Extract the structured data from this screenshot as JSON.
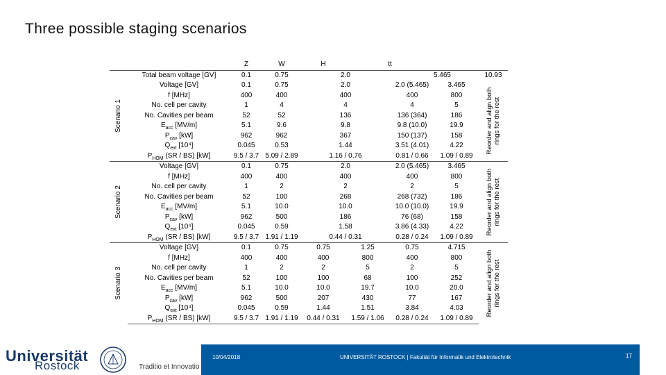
{
  "title": "Three possible staging scenarios",
  "columns": [
    "Z",
    "W",
    "H",
    "tt"
  ],
  "scenario1": {
    "label": "Scenario 1",
    "note": "Reorder and align both rings for the rest",
    "rows": [
      {
        "param": "Total beam voltage [GV]",
        "Z": "0.1",
        "W": "0.75",
        "H": "2.0",
        "tt_a": "5.465",
        "tt_b": "10.93"
      },
      {
        "param": "Voltage [GV]",
        "Z": "0.1",
        "W": "0.75",
        "H": "2.0",
        "tt_a": "2.0 (5.465)",
        "tt_b": "3.465"
      },
      {
        "param": "f [MHz]",
        "Z": "400",
        "W": "400",
        "H": "400",
        "tt_a": "400",
        "tt_b": "800"
      },
      {
        "param": "No. cell per cavity",
        "Z": "1",
        "W": "4",
        "H": "4",
        "tt_a": "4",
        "tt_b": "5"
      },
      {
        "param": "No. Cavities per beam",
        "Z": "52",
        "W": "52",
        "H": "136",
        "tt_a": "136 (364)",
        "tt_b": "186"
      },
      {
        "param": "Eacc [MV/m]",
        "Z": "5.1",
        "W": "9.6",
        "H": "9.8",
        "tt_a": "9.8 (10.0)",
        "tt_b": "19.9"
      },
      {
        "param": "Pcav [kW]",
        "Z": "962",
        "W": "962",
        "H": "367",
        "tt_a": "150 (137)",
        "tt_b": "158"
      },
      {
        "param": "Qext [10⁴]",
        "Z": "0.045",
        "W": "0.53",
        "H": "1.44",
        "tt_a": "3.51 (4.01)",
        "tt_b": "4.22"
      },
      {
        "param": "PHOM (SR / BS) [kW]",
        "Z": "9.5 / 3.7",
        "W": "5.09 / 2.89",
        "H": "1.16 / 0.76",
        "tt_a": "0.81 / 0.66",
        "tt_b": "1.09 / 0.89"
      }
    ]
  },
  "scenario2": {
    "label": "Scenario 2",
    "note": "Reorder and align both rings for the rest",
    "rows": [
      {
        "param": "Voltage [GV]",
        "Z": "0.1",
        "W": "0.75",
        "H": "2.0",
        "tt_a": "2.0 (5.465)",
        "tt_b": "3.465"
      },
      {
        "param": "f [MHz]",
        "Z": "400",
        "W": "400",
        "H": "400",
        "tt_a": "400",
        "tt_b": "800"
      },
      {
        "param": "No. cell per cavity",
        "Z": "1",
        "W": "2",
        "H": "2",
        "tt_a": "2",
        "tt_b": "5"
      },
      {
        "param": "No. Cavities per beam",
        "Z": "52",
        "W": "100",
        "H": "268",
        "tt_a": "268 (732)",
        "tt_b": "186"
      },
      {
        "param": "Eacc [MV/m]",
        "Z": "5.1",
        "W": "10.0",
        "H": "10.0",
        "tt_a": "10.0 (10.0)",
        "tt_b": "19.9"
      },
      {
        "param": "Pcav [kW]",
        "Z": "962",
        "W": "500",
        "H": "186",
        "tt_a": "76 (68)",
        "tt_b": "158"
      },
      {
        "param": "Qext [10⁴]",
        "Z": "0.045",
        "W": "0.59",
        "H": "1.58",
        "tt_a": "3.86 (4.33)",
        "tt_b": "4.22"
      },
      {
        "param": "PHOM (SR / BS) [kW]",
        "Z": "9.5 / 3.7",
        "W": "1.91 / 1.19",
        "H": "0.44 / 0.31",
        "tt_a": "0.28 / 0.24",
        "tt_b": "1.09 / 0.89"
      }
    ]
  },
  "scenario3": {
    "label": "Scenario 3",
    "note": "Reorder and align both rings for the rest",
    "rows": [
      {
        "param": "Voltage [GV]",
        "Z": "0.1",
        "W": "0.75",
        "H_a": "0.75",
        "H_b": "1.25",
        "tt_a": "0.75",
        "tt_b": "4.715"
      },
      {
        "param": "f [MHz]",
        "Z": "400",
        "W": "400",
        "H_a": "400",
        "H_b": "800",
        "tt_a": "400",
        "tt_b": "800"
      },
      {
        "param": "No. cell per cavity",
        "Z": "1",
        "W": "2",
        "H_a": "2",
        "H_b": "5",
        "tt_a": "2",
        "tt_b": "5"
      },
      {
        "param": "No. Cavities per beam",
        "Z": "52",
        "W": "100",
        "H_a": "100",
        "H_b": "68",
        "tt_a": "100",
        "tt_b": "252"
      },
      {
        "param": "Eacc [MV/m]",
        "Z": "5.1",
        "W": "10.0",
        "H_a": "10.0",
        "H_b": "19.7",
        "tt_a": "10.0",
        "tt_b": "20.0"
      },
      {
        "param": "Pcav [kW]",
        "Z": "962",
        "W": "500",
        "H_a": "207",
        "H_b": "430",
        "tt_a": "77",
        "tt_b": "167"
      },
      {
        "param": "Qext [10⁴]",
        "Z": "0.045",
        "W": "0.59",
        "H_a": "1.44",
        "H_b": "1.51",
        "tt_a": "3.84",
        "tt_b": "4.03"
      },
      {
        "param": "PHOM (SR / BS) [kW]",
        "Z": "9.5 / 3.7",
        "W": "1.91 / 1.19",
        "H_a": "0.44 / 0.31",
        "H_b": "1.59 / 1.06",
        "tt_a": "0.28 / 0.24",
        "tt_b": "1.09 / 0.89"
      }
    ]
  },
  "footer": {
    "date": "10/04/2018",
    "institution": "UNIVERSITÄT ROSTOCK | Fakultät für Informatik und Elektrotechnik",
    "page": "17"
  },
  "logo": {
    "name": "Universität",
    "city": "Rostock",
    "motto": "Traditio et Innovatio",
    "brand_color": "#005aa0"
  }
}
